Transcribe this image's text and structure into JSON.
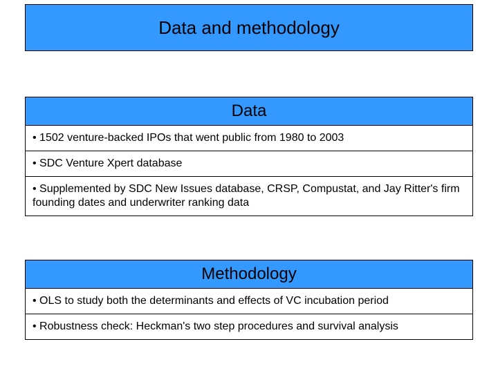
{
  "colors": {
    "header_bg": "#3399ff",
    "border": "#000000",
    "text": "#000000"
  },
  "slide_title": "Data and methodology",
  "sections": [
    {
      "header": "Data",
      "rows": [
        "• 1502 venture-backed IPOs that went public from 1980 to 2003",
        "• SDC Venture Xpert database",
        "• Supplemented by SDC New Issues database, CRSP, Compustat, and Jay Ritter's firm founding dates and underwriter ranking data"
      ]
    },
    {
      "header": "Methodology",
      "rows": [
        "• OLS to study both the determinants and effects of VC incubation period",
        "• Robustness check: Heckman's two step procedures and survival analysis"
      ]
    }
  ]
}
